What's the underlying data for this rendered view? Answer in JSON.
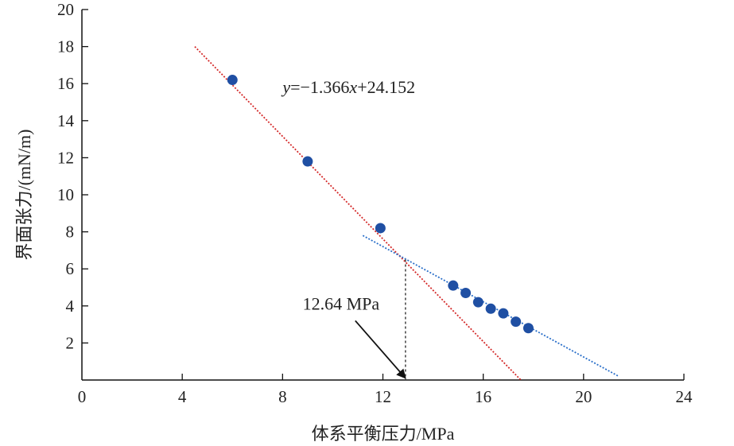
{
  "chart_data": {
    "type": "scatter",
    "xlabel": "体系平衡压力/MPa",
    "ylabel": "界面张力/(mN/m)",
    "xlim": [
      0,
      24
    ],
    "ylim": [
      0,
      20
    ],
    "x_ticks": [
      0,
      4,
      8,
      12,
      16,
      20,
      24
    ],
    "y_ticks": [
      2,
      4,
      6,
      8,
      10,
      12,
      14,
      16,
      18,
      20
    ],
    "grid": false,
    "legend": "none",
    "series": [
      {
        "x": [
          6.0,
          9.0,
          11.9
        ],
        "y": [
          16.2,
          11.8,
          8.2
        ],
        "color": "#1f4fa3"
      },
      {
        "x": [
          14.8,
          15.3,
          15.8,
          16.3,
          16.8,
          17.3,
          17.8
        ],
        "y": [
          5.1,
          4.7,
          4.2,
          3.85,
          3.6,
          3.15,
          2.8
        ],
        "color": "#1f4fa3"
      }
    ],
    "fit_lines": [
      {
        "x": [
          4.5,
          17.5
        ],
        "y": [
          18.0,
          0.0
        ],
        "color": "#d42a2a",
        "style": "dotted"
      },
      {
        "x": [
          11.2,
          21.4
        ],
        "y": [
          7.8,
          0.2
        ],
        "color": "#2a6fc9",
        "style": "dotted"
      }
    ],
    "annotations": {
      "equation": {
        "pre": "y",
        "mid": "=−1.366",
        "var": "x",
        "post": "+24.152",
        "x": 8.0,
        "y": 15.5
      },
      "pressure": {
        "text": "12.64 MPa",
        "x": 8.8,
        "y": 3.8,
        "arrow_from": [
          10.9,
          3.2
        ],
        "arrow_to": [
          12.9,
          0.1
        ]
      },
      "intersection": {
        "x": 12.9,
        "y": 6.5
      }
    }
  }
}
